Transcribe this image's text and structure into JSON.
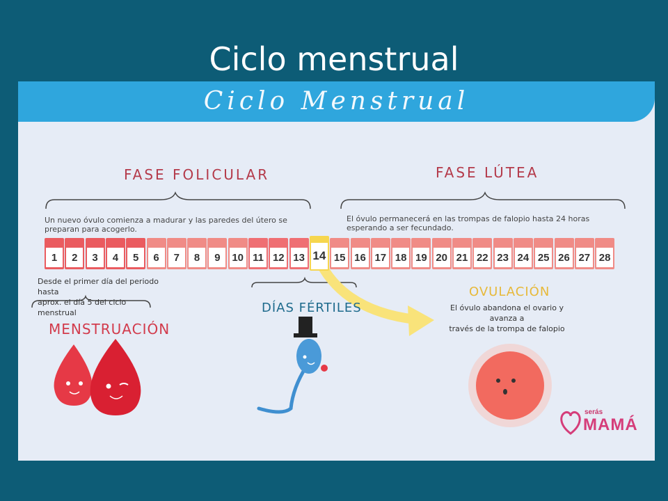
{
  "slide": {
    "title": "Ciclo menstrual"
  },
  "card": {
    "banner_title": "Ciclo Menstrual",
    "phase_follicular": {
      "title": "FASE FOLICULAR",
      "description": "Un nuevo óvulo comienza a madurar y las paredes del útero se preparan para acogerlo."
    },
    "phase_luteal": {
      "title": "FASE LÚTEA",
      "description": "El óvulo permanecerá en las trompas de falopio hasta 24 horas esperando a ser fecundado."
    },
    "days": [
      "1",
      "2",
      "3",
      "4",
      "5",
      "6",
      "7",
      "8",
      "9",
      "10",
      "11",
      "12",
      "13",
      "14",
      "15",
      "16",
      "17",
      "18",
      "19",
      "20",
      "21",
      "22",
      "23",
      "24",
      "25",
      "26",
      "27",
      "28"
    ],
    "menstruation": {
      "note_line1": "Desde el primer día del periodo hasta",
      "note_line2": "aprox. el día 5 del ciclo menstrual",
      "label": "MENSTRUACIÓN"
    },
    "fertile": {
      "label": "DÍAS FÉRTILES"
    },
    "ovulation": {
      "label": "OVULACIÓN",
      "note_line1": "El óvulo abandona el ovario y avanza a",
      "note_line2": "través de la trompa de falopio"
    },
    "logo": {
      "small": "serás",
      "big": "MAMÁ"
    }
  },
  "colors": {
    "background": "#0d5c76",
    "banner": "#2fa6dd",
    "menstruation": "#ea5b5f",
    "ovulation": "#f6d64e",
    "fertile_label": "#1d6a8c"
  }
}
